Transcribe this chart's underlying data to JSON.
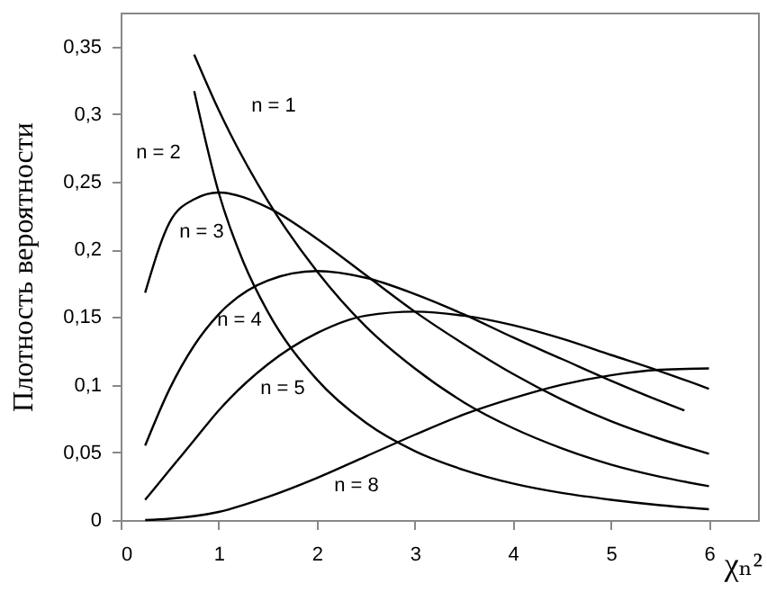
{
  "chart_data": {
    "type": "line",
    "xlabel": "χₙ²",
    "ylabel": "Плотность вероятности",
    "xlim": [
      0,
      6.5
    ],
    "ylim": [
      0,
      0.375
    ],
    "xticks": [
      0,
      1,
      2,
      3,
      4,
      5,
      6
    ],
    "yticks": [
      0,
      {
        "value": 0.05,
        "label": "0,05"
      },
      {
        "value": 0.1,
        "label": "0,1"
      },
      {
        "value": 0.15,
        "label": "0,15"
      },
      {
        "value": 0.2,
        "label": "0,2"
      },
      {
        "value": 0.25,
        "label": "0,25"
      },
      {
        "value": 0.3,
        "label": "0,3"
      },
      {
        "value": 0.35,
        "label": "0,35"
      }
    ],
    "grid": false,
    "marker": "none",
    "line_style": "solid",
    "series": [
      {
        "name": "n = 1",
        "color": "#000000",
        "x": [
          0.75,
          1,
          1.5,
          2,
          2.5,
          3,
          3.5,
          4,
          4.5,
          5,
          5.5,
          6
        ],
        "values": [
          0.344,
          0.303,
          0.236,
          0.184,
          0.143,
          0.112,
          0.087,
          0.068,
          0.053,
          0.041,
          0.032,
          0.025
        ]
      },
      {
        "name": "n = 2",
        "color": "#000000",
        "x": [
          0.75,
          1,
          1.25,
          1.5,
          2,
          2.5,
          3,
          3.5,
          4,
          4.5,
          5,
          5.5,
          6
        ],
        "values": [
          0.317,
          0.242,
          0.191,
          0.154,
          0.104,
          0.072,
          0.051,
          0.037,
          0.027,
          0.02,
          0.015,
          0.011,
          0.008
        ]
      },
      {
        "name": "n = 3",
        "color": "#000000",
        "x": [
          0.25,
          0.5,
          0.75,
          1,
          1.5,
          2,
          2.5,
          3,
          3.5,
          4,
          4.5,
          5,
          5.5,
          6
        ],
        "values": [
          0.168,
          0.22,
          0.237,
          0.242,
          0.231,
          0.208,
          0.181,
          0.154,
          0.13,
          0.108,
          0.089,
          0.073,
          0.06,
          0.049
        ]
      },
      {
        "name": "n = 4",
        "color": "#000000",
        "x": [
          0.25,
          0.5,
          0.75,
          1,
          1.5,
          2,
          2.5,
          3,
          3.5,
          4,
          4.5,
          5,
          5.5,
          5.75
        ],
        "values": [
          0.055,
          0.097,
          0.129,
          0.152,
          0.177,
          0.184,
          0.179,
          0.167,
          0.152,
          0.135,
          0.119,
          0.103,
          0.088,
          0.081
        ]
      },
      {
        "name": "n = 5",
        "color": "#000000",
        "x": [
          0.25,
          0.5,
          0.75,
          1,
          1.5,
          2,
          2.5,
          3,
          3.5,
          4,
          4.5,
          5,
          5.5,
          6
        ],
        "values": [
          0.015,
          0.037,
          0.059,
          0.081,
          0.115,
          0.138,
          0.151,
          0.154,
          0.151,
          0.144,
          0.134,
          0.122,
          0.11,
          0.097
        ]
      },
      {
        "name": "n = 8",
        "color": "#000000",
        "x": [
          0.25,
          0.5,
          1,
          1.5,
          2,
          2.5,
          3,
          3.5,
          4,
          4.5,
          5,
          5.5,
          6
        ],
        "values": [
          0,
          0.001,
          0.006,
          0.017,
          0.031,
          0.047,
          0.063,
          0.078,
          0.09,
          0.1,
          0.107,
          0.111,
          0.112
        ]
      }
    ]
  }
}
